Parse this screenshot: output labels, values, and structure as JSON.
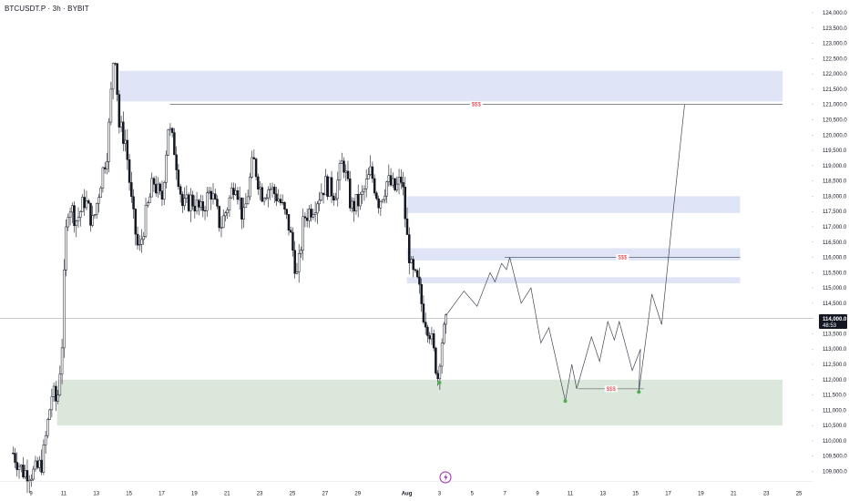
{
  "header": {
    "symbol": "BTCUSDT.P",
    "interval": "3h",
    "exchange": "BYBIT",
    "sep": " · "
  },
  "price_badge": {
    "price": "114,000.0",
    "countdown": "48:53"
  },
  "chart_data": {
    "type": "candlestick",
    "title": "BTCUSDT.P · 3h · BYBIT",
    "ylim": [
      108800,
      124200
    ],
    "y_ticks": [
      109000,
      109500,
      110000,
      110500,
      111000,
      111500,
      112000,
      112500,
      113000,
      113500,
      114000,
      114500,
      115000,
      115500,
      116000,
      116500,
      117000,
      117500,
      118000,
      118500,
      119000,
      119500,
      120000,
      120500,
      121000,
      121500,
      122000,
      122500,
      123000,
      123500,
      124000
    ],
    "y_tick_labels": [
      "109,000.0",
      "109,500.0",
      "110,000.0",
      "110,500.0",
      "111,000.0",
      "111,500.0",
      "112,000.0",
      "112,500.0",
      "113,000.0",
      "113,500.0",
      "114,000.0",
      "114,500.0",
      "115,000.0",
      "115,500.0",
      "116,000.0",
      "116,500.0",
      "117,000.0",
      "117,500.0",
      "118,000.0",
      "118,500.0",
      "119,000.0",
      "119,500.0",
      "120,000.0",
      "120,500.0",
      "121,000.0",
      "121,500.0",
      "122,000.0",
      "122,500.0",
      "123,000.0",
      "123,500.0",
      "124,000.0"
    ],
    "x_axis": {
      "start_day": 8,
      "end_day": 26,
      "ticks": [
        {
          "day": 9,
          "label": "9"
        },
        {
          "day": 11,
          "label": "11"
        },
        {
          "day": 13,
          "label": "13"
        },
        {
          "day": 15,
          "label": "15"
        },
        {
          "day": 17,
          "label": "17"
        },
        {
          "day": 19,
          "label": "19"
        },
        {
          "day": 21,
          "label": "21"
        },
        {
          "day": 23,
          "label": "23"
        },
        {
          "day": 25,
          "label": "25"
        },
        {
          "day": 27,
          "label": "27"
        },
        {
          "day": 29,
          "label": "29"
        },
        {
          "day": 32,
          "label": "Aug"
        },
        {
          "day": 34,
          "label": "3"
        },
        {
          "day": 36,
          "label": "5"
        },
        {
          "day": 38,
          "label": "7"
        },
        {
          "day": 40,
          "label": "9"
        },
        {
          "day": 42,
          "label": "11"
        },
        {
          "day": 44,
          "label": "13"
        },
        {
          "day": 46,
          "label": "15"
        },
        {
          "day": 48,
          "label": "17"
        },
        {
          "day": 50,
          "label": "19"
        },
        {
          "day": 52,
          "label": "21"
        },
        {
          "day": 54,
          "label": "23"
        },
        {
          "day": 56,
          "label": "25"
        }
      ]
    },
    "price_path": [
      {
        "day": 7.9,
        "price": 109600
      },
      {
        "day": 8.5,
        "price": 109000
      },
      {
        "day": 9.2,
        "price": 108950
      },
      {
        "day": 9.7,
        "price": 109300
      },
      {
        "day": 10.0,
        "price": 110500
      },
      {
        "day": 10.3,
        "price": 111600
      },
      {
        "day": 10.6,
        "price": 111200
      },
      {
        "day": 10.9,
        "price": 113200
      },
      {
        "day": 11.1,
        "price": 116500
      },
      {
        "day": 11.3,
        "price": 117800
      },
      {
        "day": 11.8,
        "price": 117200
      },
      {
        "day": 12.3,
        "price": 117900
      },
      {
        "day": 12.8,
        "price": 117100
      },
      {
        "day": 13.3,
        "price": 118600
      },
      {
        "day": 13.7,
        "price": 119600
      },
      {
        "day": 14.1,
        "price": 123100
      },
      {
        "day": 14.4,
        "price": 120300
      },
      {
        "day": 14.8,
        "price": 119800
      },
      {
        "day": 15.2,
        "price": 117500
      },
      {
        "day": 15.6,
        "price": 116100
      },
      {
        "day": 16.0,
        "price": 117300
      },
      {
        "day": 16.5,
        "price": 118500
      },
      {
        "day": 17.0,
        "price": 117800
      },
      {
        "day": 17.4,
        "price": 120300
      },
      {
        "day": 17.8,
        "price": 119500
      },
      {
        "day": 18.3,
        "price": 117600
      },
      {
        "day": 18.8,
        "price": 117900
      },
      {
        "day": 19.4,
        "price": 117500
      },
      {
        "day": 20.0,
        "price": 118200
      },
      {
        "day": 20.6,
        "price": 117000
      },
      {
        "day": 21.1,
        "price": 117800
      },
      {
        "day": 21.5,
        "price": 118600
      },
      {
        "day": 22.0,
        "price": 117200
      },
      {
        "day": 22.6,
        "price": 119200
      },
      {
        "day": 23.1,
        "price": 118100
      },
      {
        "day": 23.6,
        "price": 118300
      },
      {
        "day": 24.2,
        "price": 117900
      },
      {
        "day": 24.8,
        "price": 117000
      },
      {
        "day": 25.3,
        "price": 115300
      },
      {
        "day": 25.7,
        "price": 117300
      },
      {
        "day": 26.3,
        "price": 117700
      },
      {
        "day": 27.0,
        "price": 118400
      },
      {
        "day": 27.6,
        "price": 118100
      },
      {
        "day": 28.1,
        "price": 119200
      },
      {
        "day": 28.6,
        "price": 117600
      },
      {
        "day": 29.2,
        "price": 117900
      },
      {
        "day": 29.8,
        "price": 118800
      },
      {
        "day": 30.3,
        "price": 117800
      },
      {
        "day": 30.8,
        "price": 118500
      },
      {
        "day": 31.3,
        "price": 118200
      },
      {
        "day": 31.7,
        "price": 118600
      },
      {
        "day": 32.0,
        "price": 116700
      },
      {
        "day": 32.3,
        "price": 115500
      },
      {
        "day": 32.7,
        "price": 115100
      },
      {
        "day": 33.0,
        "price": 114200
      },
      {
        "day": 33.4,
        "price": 113600
      },
      {
        "day": 33.7,
        "price": 112700
      },
      {
        "day": 33.9,
        "price": 112100
      },
      {
        "day": 34.1,
        "price": 113200
      },
      {
        "day": 34.4,
        "price": 113800
      },
      {
        "day": 34.5,
        "price": 114000
      }
    ],
    "current_price": 114000,
    "zones": [
      {
        "day_from": 14.4,
        "day_to": 55.0,
        "low": 121100,
        "high": 122100,
        "color": "#dfe5f6"
      },
      {
        "day_from": 32.0,
        "day_to": 52.4,
        "low": 117450,
        "high": 118000,
        "color": "#dfe5f6"
      },
      {
        "day_from": 32.0,
        "day_to": 52.4,
        "low": 115900,
        "high": 116300,
        "color": "#dfe5f6"
      },
      {
        "day_from": 32.0,
        "day_to": 52.4,
        "low": 115150,
        "high": 115350,
        "color": "#dfe5f6"
      },
      {
        "day_from": 10.6,
        "day_to": 55.0,
        "low": 110500,
        "high": 112000,
        "color": "#dbe7da"
      }
    ],
    "liquidity_lines": [
      {
        "day_from": 17.5,
        "day_to": 55.0,
        "price": 121000,
        "label": "$$$"
      },
      {
        "day_from": 38.0,
        "day_to": 52.4,
        "price": 116000,
        "label": "$$$"
      },
      {
        "day_from": 42.5,
        "day_to": 46.5,
        "price": 111700,
        "label": "$$$"
      }
    ],
    "projection_path": [
      {
        "day": 34.4,
        "price": 114100
      },
      {
        "day": 35.5,
        "price": 114900
      },
      {
        "day": 36.3,
        "price": 114400
      },
      {
        "day": 37.1,
        "price": 115500
      },
      {
        "day": 37.4,
        "price": 115200
      },
      {
        "day": 37.8,
        "price": 115800
      },
      {
        "day": 38.1,
        "price": 115600
      },
      {
        "day": 38.3,
        "price": 116000
      },
      {
        "day": 39.0,
        "price": 114500
      },
      {
        "day": 39.6,
        "price": 115000
      },
      {
        "day": 40.2,
        "price": 113200
      },
      {
        "day": 40.7,
        "price": 113700
      },
      {
        "day": 41.7,
        "price": 111300
      },
      {
        "day": 42.1,
        "price": 112500
      },
      {
        "day": 42.4,
        "price": 111700
      },
      {
        "day": 43.3,
        "price": 113400
      },
      {
        "day": 43.8,
        "price": 112600
      },
      {
        "day": 44.3,
        "price": 113900
      },
      {
        "day": 44.7,
        "price": 113300
      },
      {
        "day": 45.0,
        "price": 113900
      },
      {
        "day": 45.8,
        "price": 112300
      },
      {
        "day": 46.3,
        "price": 113000
      },
      {
        "day": 46.2,
        "price": 111600
      },
      {
        "day": 47.0,
        "price": 114800
      },
      {
        "day": 47.6,
        "price": 113800
      },
      {
        "day": 48.2,
        "price": 117000
      },
      {
        "day": 49.0,
        "price": 121000
      }
    ],
    "marker_points": [
      {
        "day": 34.0,
        "price": 111900,
        "color": "#4caf50"
      },
      {
        "day": 41.7,
        "price": 111300,
        "color": "#4caf50"
      },
      {
        "day": 46.2,
        "price": 111600,
        "color": "#4caf50"
      }
    ],
    "colors": {
      "candle": "#131722",
      "projection": "#434651",
      "liquidity_label": "#e0303a",
      "zone_supply": "#dfe5f6",
      "zone_demand": "#dbe7da"
    }
  }
}
